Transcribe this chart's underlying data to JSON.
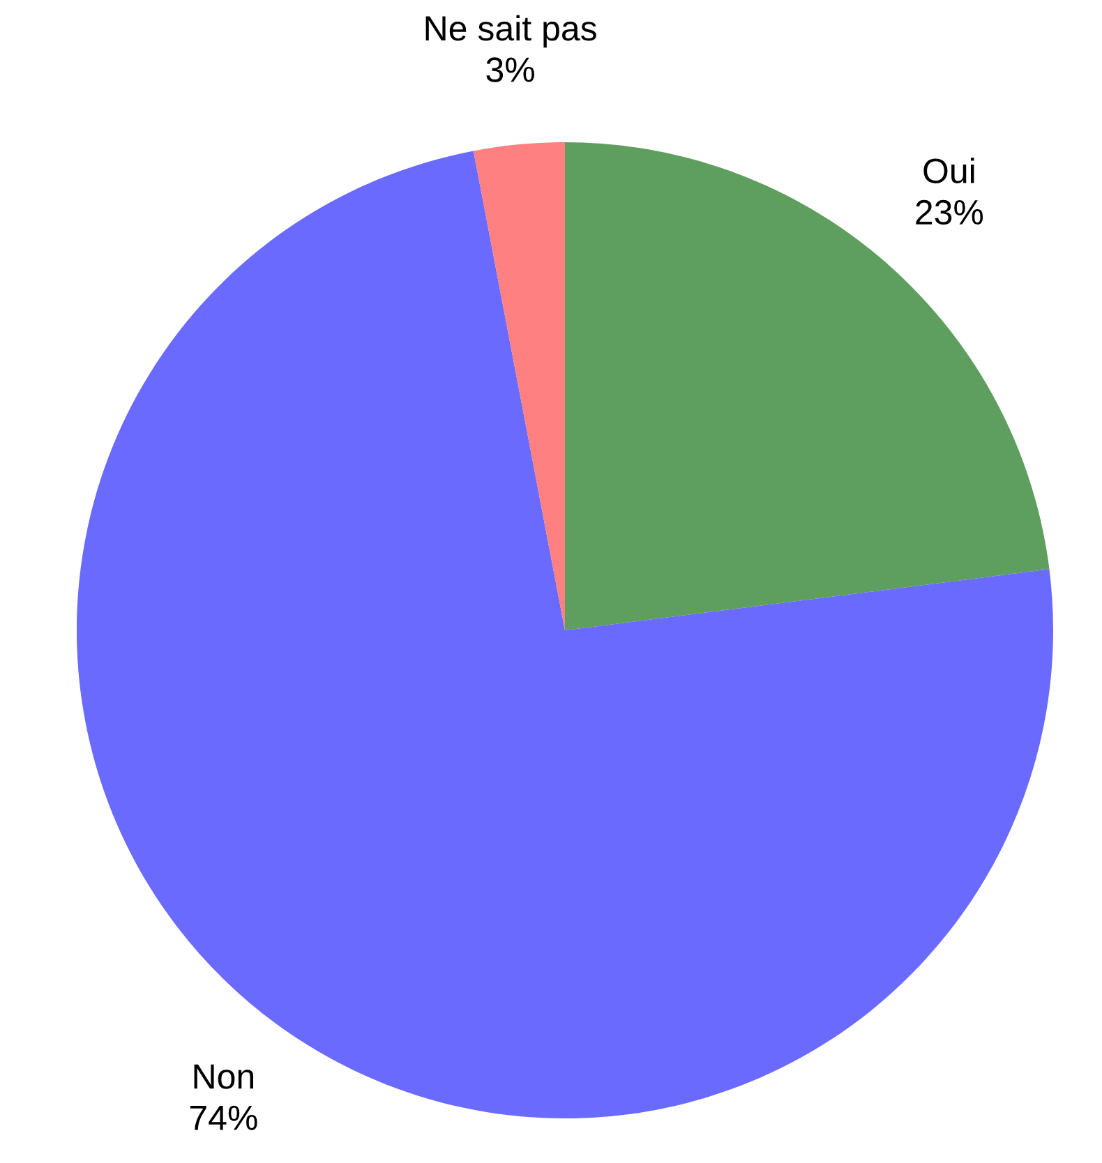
{
  "chart_data": {
    "type": "pie",
    "categories": [
      "Oui",
      "Non",
      "Ne sait pas"
    ],
    "values": [
      23,
      74,
      3
    ],
    "value_labels": [
      "23%",
      "74%",
      "3%"
    ],
    "colors": [
      "#5e9e5e",
      "#6a6aff",
      "#ff8080"
    ],
    "legend": false
  }
}
